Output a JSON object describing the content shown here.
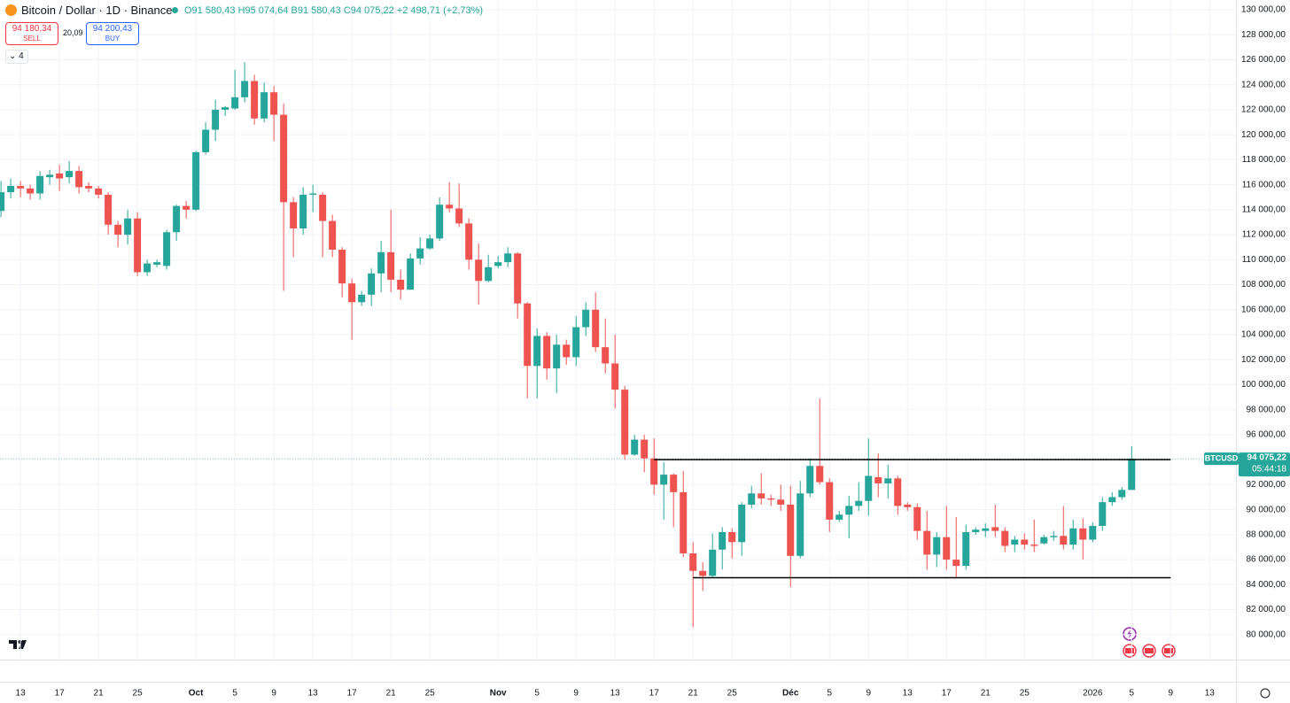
{
  "header": {
    "symbol": "Bitcoin / Dollar · 1D · Binance",
    "ohlc": [
      "O91 580,43",
      "H95 074,64",
      "B91 580,43",
      "C94 075,22",
      "+2 498,71 (+2,73%)"
    ],
    "sell_price": "94 180,34",
    "sell": "SELL",
    "spread": "20,09",
    "buy_price": "94 200,43",
    "buy": "BUY",
    "indicators": "4"
  },
  "price_label": {
    "symbol": "BTCUSD",
    "price": "94 075,22",
    "countdown": "05:44:18"
  },
  "chart_data": {
    "type": "candlestick",
    "up_color": "#26a69a",
    "down_color": "#ef5350",
    "grid": true,
    "x": [
      -2,
      -1,
      0,
      1,
      2,
      3,
      4,
      5,
      6,
      7,
      8,
      9,
      10,
      11,
      12,
      13,
      14,
      15,
      16,
      17,
      18,
      19,
      20,
      21,
      22,
      23,
      24,
      25,
      26,
      27,
      28,
      29,
      30,
      31,
      32,
      33,
      34,
      35,
      36,
      37,
      38,
      39,
      40,
      41,
      42,
      43,
      44,
      45,
      46,
      47,
      48,
      49,
      50,
      51,
      52,
      53,
      54,
      55,
      56,
      57,
      58,
      59,
      60,
      61,
      62,
      63,
      64,
      65,
      66,
      67,
      68,
      69,
      70,
      71,
      72,
      73,
      74,
      75,
      76,
      77,
      78,
      79,
      80,
      81,
      82,
      83,
      84,
      85,
      86,
      87,
      88,
      89,
      90,
      91,
      92,
      93,
      94,
      95,
      96,
      97,
      98,
      99,
      100,
      101,
      102,
      103,
      104,
      105,
      106,
      107,
      108,
      109,
      110,
      111,
      112,
      113,
      114
    ],
    "open": [
      113900,
      115400,
      115900,
      115700,
      115300,
      116600,
      116900,
      116600,
      117100,
      115900,
      115700,
      115200,
      112800,
      112000,
      113300,
      109000,
      109600,
      109500,
      112200,
      114300,
      114000,
      118600,
      120400,
      122000,
      122100,
      123000,
      124300,
      121300,
      123400,
      121600,
      114600,
      112500,
      115200,
      115200,
      113100,
      110800,
      108100,
      106600,
      107200,
      108900,
      110600,
      108400,
      107600,
      110100,
      110900,
      111700,
      114400,
      114100,
      112900,
      110000,
      108300,
      109500,
      109800,
      110500,
      106500,
      101500,
      103900,
      101300,
      103200,
      102200,
      104600,
      106000,
      103000,
      101700,
      99600,
      94400,
      95600,
      94100,
      92000,
      92800,
      91400,
      86500,
      85100,
      84700,
      86800,
      88200,
      87400,
      90400,
      91300,
      90900,
      90800,
      90400,
      86300,
      91300,
      93500,
      92200,
      89200,
      89600,
      90300,
      90700,
      92600,
      92100,
      92500,
      90400,
      90200,
      88300,
      86400,
      87800,
      86000,
      85500,
      88200,
      88300,
      88600,
      88300,
      87200,
      87600,
      87200,
      87300,
      87800,
      87900,
      87200,
      88500,
      87600,
      88700,
      90600,
      91000,
      91580.43
    ],
    "close": [
      115400,
      115900,
      115700,
      115300,
      116700,
      116800,
      116500,
      117100,
      115800,
      115700,
      115200,
      112800,
      112000,
      113300,
      109000,
      109700,
      109800,
      112200,
      114300,
      114000,
      118600,
      120400,
      122000,
      122200,
      123000,
      124300,
      121300,
      123400,
      121600,
      114600,
      112500,
      115200,
      115300,
      113100,
      110800,
      108100,
      106600,
      107200,
      108900,
      110600,
      108400,
      107600,
      110100,
      110900,
      111700,
      114400,
      114100,
      112900,
      110000,
      108300,
      109400,
      109800,
      110500,
      106500,
      101500,
      103900,
      101300,
      103200,
      102200,
      104600,
      106000,
      103000,
      101700,
      99600,
      94400,
      95600,
      94100,
      92000,
      92800,
      91400,
      86500,
      85100,
      84700,
      86800,
      88200,
      87400,
      90400,
      91300,
      90900,
      90800,
      90400,
      86300,
      91300,
      93500,
      92200,
      89200,
      89600,
      90300,
      90700,
      92700,
      92100,
      92500,
      90300,
      90200,
      88300,
      86400,
      87800,
      86000,
      85500,
      88200,
      88400,
      88500,
      88300,
      87100,
      87600,
      87200,
      87100,
      87800,
      87900,
      87200,
      88500,
      87600,
      88700,
      90600,
      91000,
      91580,
      94075.22
    ],
    "high": [
      116300,
      116500,
      116300,
      116000,
      117100,
      117200,
      117600,
      117900,
      117500,
      116200,
      115900,
      115400,
      113100,
      114000,
      113800,
      110000,
      110000,
      112400,
      114400,
      114700,
      118700,
      121000,
      122800,
      122300,
      125200,
      125800,
      124800,
      124200,
      123900,
      122500,
      115000,
      115800,
      116000,
      115400,
      113600,
      111000,
      108500,
      107500,
      109300,
      111500,
      114000,
      109200,
      110500,
      111800,
      112000,
      115000,
      116200,
      116100,
      113300,
      111300,
      110400,
      110300,
      111000,
      110600,
      106600,
      104500,
      104200,
      104000,
      103600,
      105500,
      106600,
      107400,
      105300,
      104000,
      99900,
      96000,
      96000,
      95700,
      93800,
      92900,
      93100,
      87400,
      85800,
      88100,
      88600,
      88500,
      90600,
      91900,
      92900,
      91200,
      92000,
      91900,
      92300,
      94100,
      98900,
      92500,
      89900,
      91100,
      92200,
      95700,
      94500,
      93600,
      92700,
      90600,
      90500,
      89900,
      88200,
      90300,
      89400,
      88800,
      88600,
      88900,
      90400,
      88600,
      87900,
      88100,
      89200,
      88000,
      88300,
      90300,
      89200,
      89300,
      89000,
      91000,
      91400,
      91800,
      95074.64
    ],
    "low": [
      113400,
      114900,
      115000,
      114800,
      114800,
      116000,
      115500,
      116100,
      115300,
      115400,
      114900,
      112000,
      111000,
      111200,
      108700,
      108700,
      109400,
      109200,
      111500,
      113300,
      113900,
      118400,
      119500,
      121500,
      122000,
      122600,
      120800,
      121000,
      119500,
      107500,
      110200,
      112000,
      113800,
      110200,
      110200,
      107000,
      103600,
      106300,
      106300,
      107400,
      107400,
      106800,
      107600,
      109600,
      110800,
      111500,
      113800,
      112600,
      109200,
      106400,
      108200,
      109300,
      109400,
      105300,
      98900,
      98900,
      100400,
      99300,
      101600,
      101500,
      103900,
      102600,
      100900,
      98100,
      94000,
      94300,
      93000,
      91200,
      89200,
      88600,
      86200,
      80600,
      83500,
      84600,
      85200,
      86100,
      86300,
      90100,
      90400,
      90300,
      89900,
      83800,
      86100,
      91000,
      92000,
      88200,
      89000,
      87700,
      89900,
      89500,
      91000,
      90900,
      89600,
      89900,
      87600,
      85200,
      85400,
      85200,
      84500,
      85200,
      88000,
      87800,
      87800,
      86600,
      86600,
      86800,
      86600,
      87200,
      87500,
      86800,
      86800,
      86000,
      87400,
      88300,
      90300,
      90800,
      91580.43
    ],
    "levels": [
      {
        "value": 94000,
        "x": [
          65,
          118
        ]
      },
      {
        "value": 84550,
        "x": [
          69,
          118
        ]
      }
    ],
    "xlim": [
      -2.1,
      124.7
    ],
    "xticks": [
      {
        "value": 0,
        "label": "13"
      },
      {
        "value": 4,
        "label": "17"
      },
      {
        "value": 8,
        "label": "21"
      },
      {
        "value": 12,
        "label": "25"
      },
      {
        "value": 18,
        "label": "Oct"
      },
      {
        "value": 22,
        "label": "5"
      },
      {
        "value": 26,
        "label": "9"
      },
      {
        "value": 30,
        "label": "13"
      },
      {
        "value": 34,
        "label": "17"
      },
      {
        "value": 38,
        "label": "21"
      },
      {
        "value": 42,
        "label": "25"
      },
      {
        "value": 49,
        "label": "Nov"
      },
      {
        "value": 53,
        "label": "5"
      },
      {
        "value": 57,
        "label": "9"
      },
      {
        "value": 61,
        "label": "13"
      },
      {
        "value": 65,
        "label": "17"
      },
      {
        "value": 69,
        "label": "21"
      },
      {
        "value": 73,
        "label": "25"
      },
      {
        "value": 79,
        "label": "Déc"
      },
      {
        "value": 83,
        "label": "5"
      },
      {
        "value": 87,
        "label": "9"
      },
      {
        "value": 91,
        "label": "13"
      },
      {
        "value": 95,
        "label": "17"
      },
      {
        "value": 99,
        "label": "21"
      },
      {
        "value": 103,
        "label": "25"
      },
      {
        "value": 110,
        "label": "2026"
      },
      {
        "value": 114,
        "label": "5"
      },
      {
        "value": 118,
        "label": "9"
      },
      {
        "value": 122,
        "label": "13"
      }
    ],
    "ylim": [
      78000,
      130780
    ],
    "yticks": [
      {
        "value": 80000,
        "label": "80 000,00"
      },
      {
        "value": 82000,
        "label": "82 000,00"
      },
      {
        "value": 84000,
        "label": "84 000,00"
      },
      {
        "value": 86000,
        "label": "86 000,00"
      },
      {
        "value": 88000,
        "label": "88 000,00"
      },
      {
        "value": 90000,
        "label": "90 000,00"
      },
      {
        "value": 92000,
        "label": "92 000,00"
      },
      {
        "value": 94000,
        "label": "94 000,00"
      },
      {
        "value": 96000,
        "label": "96 000,00"
      },
      {
        "value": 98000,
        "label": "98 000,00"
      },
      {
        "value": 100000,
        "label": "100 000,00"
      },
      {
        "value": 102000,
        "label": "102 000,00"
      },
      {
        "value": 104000,
        "label": "104 000,00"
      },
      {
        "value": 106000,
        "label": "106 000,00"
      },
      {
        "value": 108000,
        "label": "108 000,00"
      },
      {
        "value": 110000,
        "label": "110 000,00"
      },
      {
        "value": 112000,
        "label": "112 000,00"
      },
      {
        "value": 114000,
        "label": "114 000,00"
      },
      {
        "value": 116000,
        "label": "116 000,00"
      },
      {
        "value": 118000,
        "label": "118 000,00"
      },
      {
        "value": 120000,
        "label": "120 000,00"
      },
      {
        "value": 122000,
        "label": "122 000,00"
      },
      {
        "value": 124000,
        "label": "124 000,00"
      },
      {
        "value": 126000,
        "label": "126 000,00"
      },
      {
        "value": 128000,
        "label": "128 000,00"
      },
      {
        "value": 130000,
        "label": "130 000,00"
      }
    ]
  }
}
